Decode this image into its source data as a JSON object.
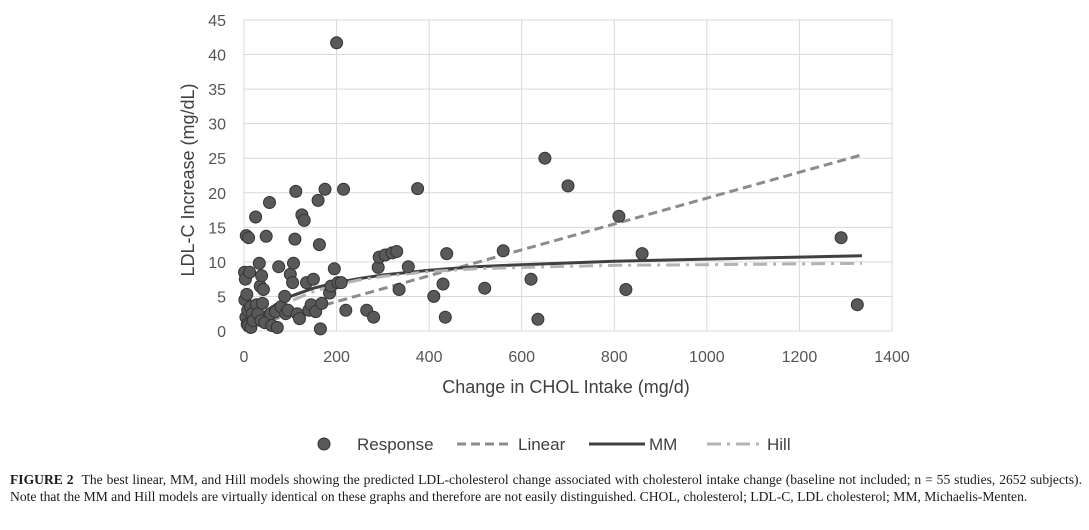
{
  "chart_data": {
    "type": "scatter",
    "xlabel": "Change in CHOL Intake (mg/d)",
    "ylabel": "LDL-C Increase (mg/dL)",
    "xlim": [
      0,
      1400
    ],
    "ylim": [
      0,
      45
    ],
    "x_ticks": [
      0,
      200,
      400,
      600,
      800,
      1000,
      1200,
      1400
    ],
    "y_ticks": [
      0,
      5,
      10,
      15,
      20,
      25,
      30,
      35,
      40,
      45
    ],
    "grid": true,
    "legend_position": "bottom",
    "series": [
      {
        "name": "Response",
        "kind": "points",
        "color": "#595959",
        "points": [
          [
            1,
            8.5
          ],
          [
            2,
            4.5
          ],
          [
            3,
            7.5
          ],
          [
            4,
            2
          ],
          [
            5,
            13.8
          ],
          [
            6,
            5.3
          ],
          [
            7,
            1
          ],
          [
            8,
            3
          ],
          [
            9,
            0.8
          ],
          [
            10,
            13.5
          ],
          [
            12,
            8.5
          ],
          [
            14,
            3.5
          ],
          [
            15,
            0.5
          ],
          [
            18,
            2.5
          ],
          [
            20,
            1.5
          ],
          [
            25,
            16.5
          ],
          [
            27,
            3.8
          ],
          [
            30,
            2.5
          ],
          [
            33,
            9.8
          ],
          [
            35,
            6.5
          ],
          [
            37,
            1.5
          ],
          [
            38,
            8
          ],
          [
            40,
            4
          ],
          [
            42,
            6
          ],
          [
            45,
            1.2
          ],
          [
            48,
            13.7
          ],
          [
            55,
            18.6
          ],
          [
            58,
            2.5
          ],
          [
            60,
            0.8
          ],
          [
            68,
            2.8
          ],
          [
            72,
            0.5
          ],
          [
            75,
            9.3
          ],
          [
            80,
            3.5
          ],
          [
            88,
            5
          ],
          [
            90,
            2.5
          ],
          [
            95,
            3
          ],
          [
            100,
            8.2
          ],
          [
            105,
            7
          ],
          [
            107,
            9.8
          ],
          [
            110,
            13.3
          ],
          [
            112,
            20.2
          ],
          [
            115,
            2.5
          ],
          [
            120,
            1.8
          ],
          [
            125,
            16.8
          ],
          [
            130,
            16
          ],
          [
            135,
            7
          ],
          [
            140,
            3
          ],
          [
            145,
            3.8
          ],
          [
            150,
            7.5
          ],
          [
            155,
            2.8
          ],
          [
            160,
            18.9
          ],
          [
            163,
            12.5
          ],
          [
            165,
            0.3
          ],
          [
            168,
            4
          ],
          [
            175,
            20.5
          ],
          [
            185,
            5.5
          ],
          [
            188,
            6.5
          ],
          [
            195,
            9
          ],
          [
            200,
            41.7
          ],
          [
            203,
            7
          ],
          [
            210,
            7
          ],
          [
            215,
            20.5
          ],
          [
            220,
            3
          ],
          [
            265,
            3
          ],
          [
            280,
            2
          ],
          [
            290,
            9.2
          ],
          [
            292,
            10.7
          ],
          [
            305,
            11
          ],
          [
            320,
            11.3
          ],
          [
            330,
            11.5
          ],
          [
            335,
            6
          ],
          [
            355,
            9.3
          ],
          [
            375,
            20.6
          ],
          [
            410,
            5
          ],
          [
            430,
            6.8
          ],
          [
            435,
            2
          ],
          [
            438,
            11.2
          ],
          [
            520,
            6.2
          ],
          [
            560,
            11.6
          ],
          [
            620,
            7.5
          ],
          [
            635,
            1.7
          ],
          [
            650,
            25
          ],
          [
            700,
            21
          ],
          [
            810,
            16.6
          ],
          [
            825,
            6
          ],
          [
            860,
            11.2
          ],
          [
            1290,
            13.5
          ],
          [
            1325,
            3.8
          ]
        ]
      },
      {
        "name": "Linear",
        "kind": "line",
        "style": "dashed",
        "color": "#8c8c8c",
        "points": [
          [
            0,
            0.5
          ],
          [
            1335,
            25.5
          ]
        ]
      },
      {
        "name": "MM",
        "kind": "line",
        "style": "solid",
        "color": "#404040",
        "points": [
          [
            0,
            0
          ],
          [
            25,
            1.8
          ],
          [
            50,
            3
          ],
          [
            75,
            4.1
          ],
          [
            100,
            5
          ],
          [
            150,
            6.2
          ],
          [
            200,
            7
          ],
          [
            250,
            7.6
          ],
          [
            300,
            8.1
          ],
          [
            400,
            8.8
          ],
          [
            500,
            9.3
          ],
          [
            600,
            9.6
          ],
          [
            800,
            10.1
          ],
          [
            1000,
            10.4
          ],
          [
            1200,
            10.7
          ],
          [
            1335,
            10.9
          ]
        ]
      },
      {
        "name": "Hill",
        "kind": "line",
        "style": "dash-dot",
        "color": "#b3b3b3",
        "points": [
          [
            0,
            0
          ],
          [
            25,
            1.2
          ],
          [
            50,
            2.4
          ],
          [
            100,
            4.3
          ],
          [
            150,
            5.7
          ],
          [
            200,
            6.7
          ],
          [
            250,
            7.4
          ],
          [
            300,
            7.9
          ],
          [
            400,
            8.6
          ],
          [
            500,
            9
          ],
          [
            600,
            9.2
          ],
          [
            800,
            9.5
          ],
          [
            1000,
            9.6
          ],
          [
            1335,
            9.8
          ]
        ]
      }
    ]
  },
  "caption": {
    "label": "FIGURE 2",
    "text": "The best linear, MM, and Hill models showing the predicted LDL-cholesterol change associated with cholesterol intake change (baseline not included; n = 55 studies, 2652 subjects). Note that the MM and Hill models are virtually identical on these graphs and therefore are not easily distinguished. CHOL, cholesterol; LDL-C, LDL cholesterol; MM, Michaelis-Menten."
  }
}
